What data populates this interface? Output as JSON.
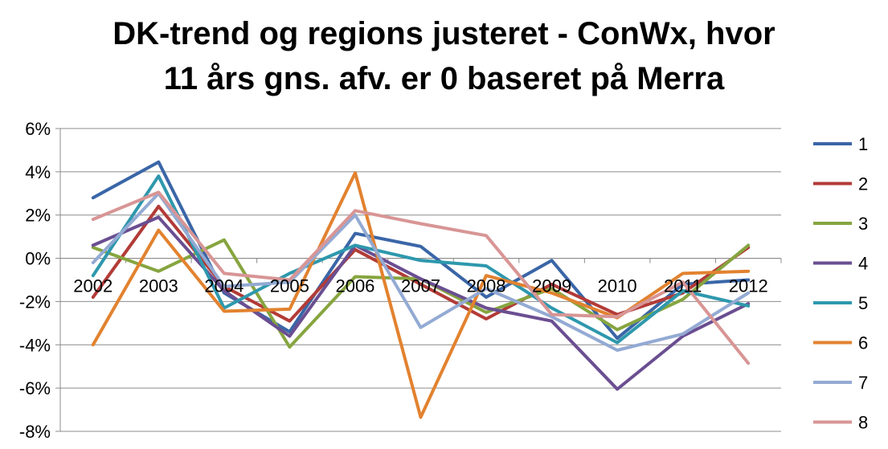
{
  "chart_data": {
    "type": "line",
    "title_line1": "DK-trend og regions justeret - ConWx, hvor",
    "title_line2": "11 års gns. afv. er 0 baseret på Merra",
    "categories": [
      "2002",
      "2003",
      "2004",
      "2005",
      "2006",
      "2007",
      "2008",
      "2009",
      "2010",
      "2011",
      "2012"
    ],
    "ylim": [
      -8,
      6
    ],
    "yticks": [
      "6%",
      "4%",
      "2%",
      "0%",
      "-2%",
      "-4%",
      "-6%",
      "-8%"
    ],
    "grid": true,
    "legend_position": "right",
    "series": [
      {
        "name": "1",
        "color": "#3A66A7",
        "values": [
          2.8,
          4.45,
          -1.6,
          -3.4,
          1.15,
          0.55,
          -1.8,
          -0.1,
          -3.7,
          -1.2,
          -1.0
        ]
      },
      {
        "name": "2",
        "color": "#B23B37",
        "values": [
          -1.8,
          2.4,
          -1.3,
          -2.9,
          0.4,
          -1.2,
          -2.8,
          -1.2,
          -2.6,
          -1.6,
          0.5
        ]
      },
      {
        "name": "3",
        "color": "#86A53F",
        "values": [
          0.5,
          -0.6,
          0.85,
          -4.1,
          -0.85,
          -0.95,
          -2.5,
          -1.4,
          -3.3,
          -1.9,
          0.6
        ]
      },
      {
        "name": "4",
        "color": "#6A4E91",
        "values": [
          0.6,
          1.9,
          -1.5,
          -3.6,
          0.6,
          -0.95,
          -2.3,
          -2.9,
          -6.05,
          -3.6,
          -2.1
        ]
      },
      {
        "name": "5",
        "color": "#2E98AD",
        "values": [
          -0.8,
          3.8,
          -2.3,
          -0.7,
          0.6,
          -0.1,
          -0.35,
          -2.3,
          -3.9,
          -1.5,
          -2.2
        ]
      },
      {
        "name": "6",
        "color": "#E2822F",
        "values": [
          -4.0,
          1.3,
          -2.45,
          -2.35,
          3.95,
          -7.35,
          -0.8,
          -1.6,
          -2.75,
          -0.7,
          -0.6
        ]
      },
      {
        "name": "7",
        "color": "#93AAD3",
        "values": [
          -0.2,
          3.0,
          -1.3,
          -1.1,
          2.0,
          -3.2,
          -1.4,
          -2.7,
          -4.25,
          -3.5,
          -1.6
        ]
      },
      {
        "name": "8",
        "color": "#D89595",
        "values": [
          1.8,
          3.05,
          -0.7,
          -1.0,
          2.2,
          1.6,
          1.05,
          -2.6,
          -2.7,
          -1.1,
          -4.85
        ]
      }
    ]
  }
}
